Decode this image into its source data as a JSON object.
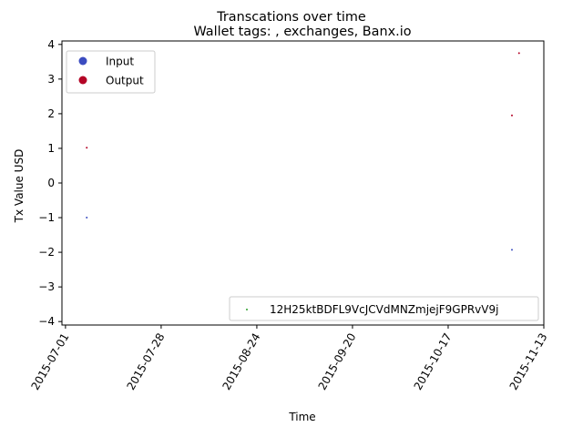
{
  "chart_data": {
    "type": "scatter",
    "title": "Transcations over time",
    "subtitle": "Wallet tags: , exchanges, Banx.io",
    "xlabel": "Time",
    "ylabel": "Tx Value USD",
    "x_ticks": [
      "2015-07-01",
      "2015-07-28",
      "2015-08-24",
      "2015-09-20",
      "2015-10-17",
      "2015-11-13"
    ],
    "y_ticks": [
      -4,
      -3,
      -2,
      -1,
      0,
      1,
      2,
      3,
      4
    ],
    "xlim": [
      "2015-06-30",
      "2015-11-13"
    ],
    "ylim": [
      -4.1,
      4.1
    ],
    "legend_position": "upper-left",
    "series": [
      {
        "name": "Input",
        "color": "#3b4cc0",
        "points": [
          [
            "2015-07-07",
            -1.0
          ],
          [
            "2015-11-04",
            -1.93
          ]
        ]
      },
      {
        "name": "Output",
        "color": "#b40426",
        "points": [
          [
            "2015-07-07",
            1.02
          ],
          [
            "2015-11-04",
            1.95
          ],
          [
            "2015-11-06",
            3.75
          ]
        ]
      }
    ],
    "address_legend": {
      "label": "12H25ktBDFL9VcJCVdMNZmjejF9GPRvV9j",
      "color": "#2ca02c",
      "position": "lower-right"
    }
  }
}
